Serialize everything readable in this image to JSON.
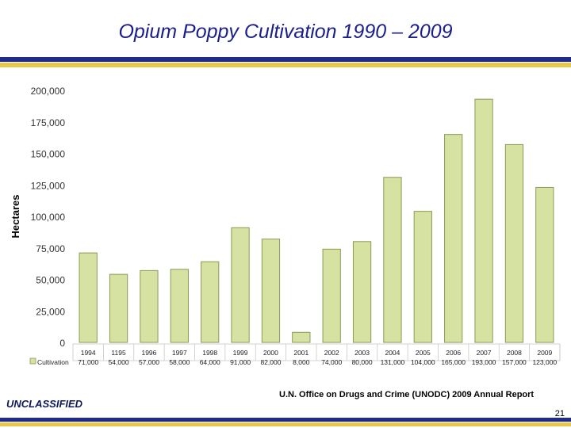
{
  "slide": {
    "title": "Opium Poppy Cultivation 1990 – 2009",
    "classification": "UNCLASSIFIED",
    "source": "U.N. Office on Drugs and Crime (UNODC) 2009 Annual Report",
    "page_number": "21"
  },
  "colors": {
    "title": "#1a1f8a",
    "rule_blue": "#1f2a8a",
    "rule_gold": "#e9c64a",
    "bar_fill": "#d6e2a2",
    "bar_stroke": "#8a9a55"
  },
  "chart_data": {
    "type": "bar",
    "title": "",
    "xlabel": "",
    "ylabel": "Hectares",
    "ylim": [
      0,
      200000
    ],
    "y_ticks": [
      0,
      25000,
      50000,
      75000,
      100000,
      125000,
      150000,
      175000,
      200000
    ],
    "y_tick_labels": [
      "0",
      "25,000",
      "50,000",
      "75,000",
      "100,000",
      "125,000",
      "150,000",
      "175,000",
      "200,000"
    ],
    "categories": [
      "1994",
      "1195",
      "1996",
      "1997",
      "1998",
      "1999",
      "2000",
      "2001",
      "2002",
      "2003",
      "2004",
      "2005",
      "2006",
      "2007",
      "2008",
      "2009"
    ],
    "series": [
      {
        "name": "Cultivation",
        "values": [
          71000,
          54000,
          57000,
          58000,
          64000,
          91000,
          82000,
          8000,
          74000,
          80000,
          131000,
          104000,
          165000,
          193000,
          157000,
          123000
        ],
        "value_labels": [
          "71,000",
          "54,000",
          "57,000",
          "58,000",
          "64,000",
          "91,000",
          "82,000",
          "8,000",
          "74,000",
          "80,000",
          "131,000",
          "104,000",
          "165,000",
          "193,000",
          "157,000",
          "123,000"
        ]
      }
    ],
    "grid": false,
    "legend": "bottom-left data table"
  }
}
